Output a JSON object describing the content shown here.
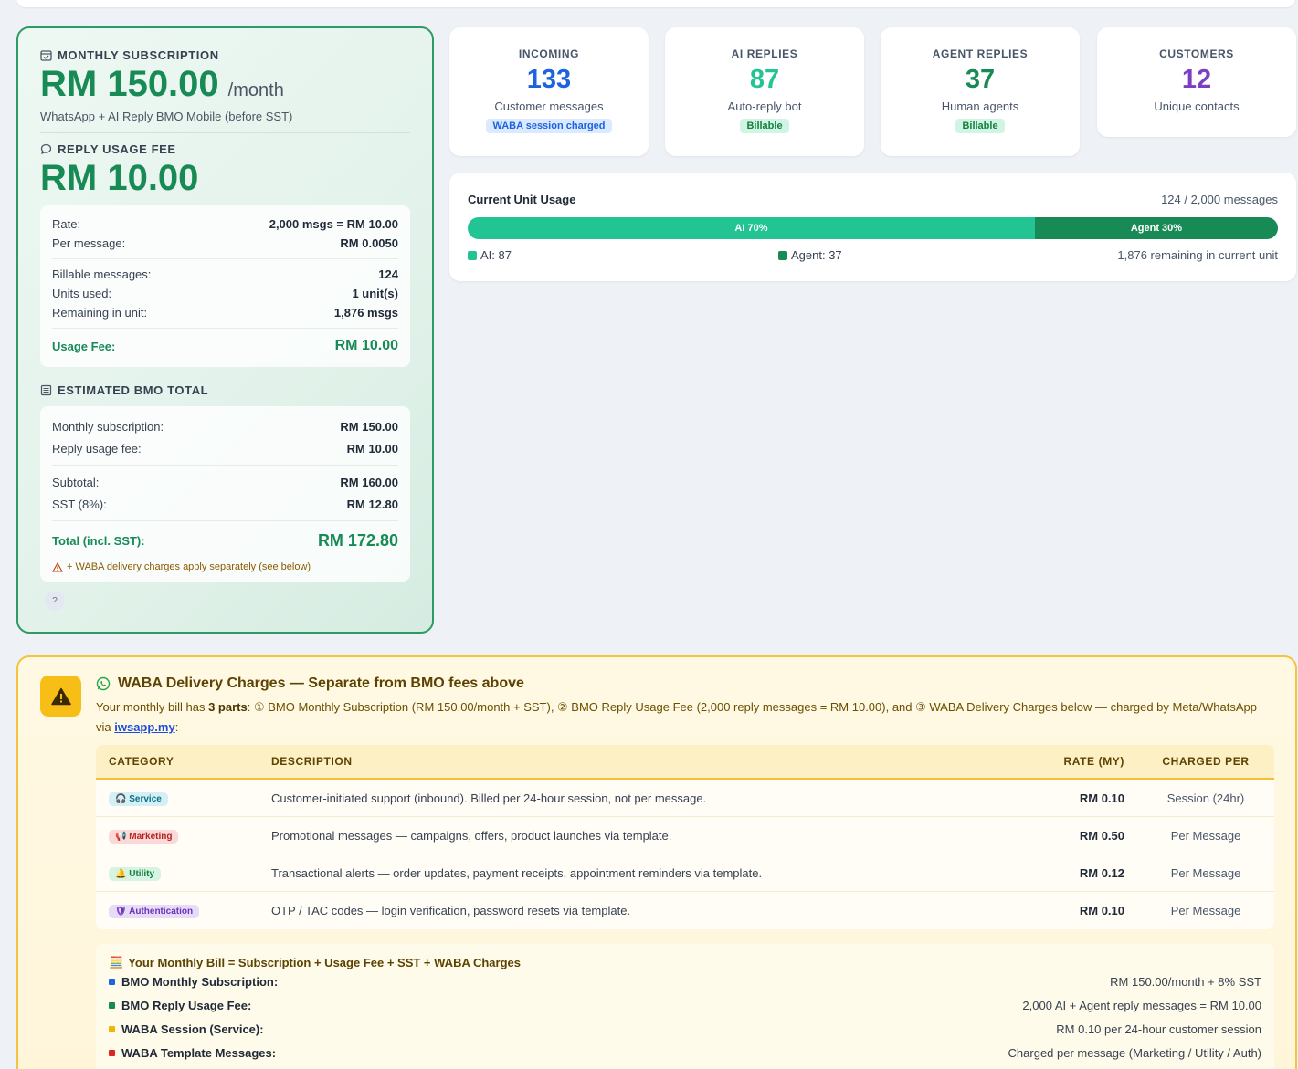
{
  "subscription": {
    "title": "MONTHLY SUBSCRIPTION",
    "amount": "RM 150.00",
    "per": "/month",
    "desc": "WhatsApp + AI Reply BMO Mobile (before SST)"
  },
  "reply_fee": {
    "title": "REPLY USAGE FEE",
    "amount": "RM 10.00",
    "rows_a": [
      {
        "k": "Rate:",
        "v": "2,000 msgs = RM 10.00"
      },
      {
        "k": "Per message:",
        "v": "RM 0.0050"
      }
    ],
    "rows_b": [
      {
        "k": "Billable messages:",
        "v": "124"
      },
      {
        "k": "Units used:",
        "v": "1 unit(s)"
      },
      {
        "k": "Remaining in unit:",
        "v": "1,876 msgs"
      }
    ],
    "total": {
      "k": "Usage Fee:",
      "v": "RM 10.00"
    }
  },
  "estimate": {
    "title": "ESTIMATED BMO TOTAL",
    "rows_a": [
      {
        "k": "Monthly subscription:",
        "v": "RM 150.00"
      },
      {
        "k": "Reply usage fee:",
        "v": "RM 10.00"
      }
    ],
    "rows_b": [
      {
        "k": "Subtotal:",
        "v": "RM 160.00"
      },
      {
        "k": "SST (8%):",
        "v": "RM 12.80"
      }
    ],
    "total": {
      "k": "Total (incl. SST):",
      "v": "RM 172.80"
    },
    "note": "+ WABA delivery charges apply separately (see below)",
    "help": "?"
  },
  "stats": [
    {
      "label": "INCOMING",
      "value": "133",
      "desc": "Customer messages",
      "tag": "WABA session charged",
      "color": "#1d63e0",
      "tag_bg": "#dbeafe",
      "tag_fg": "#1d63e0"
    },
    {
      "label": "AI REPLIES",
      "value": "87",
      "desc": "Auto-reply bot",
      "tag": "Billable",
      "color": "#22c493",
      "tag_bg": "#d1f5e4",
      "tag_fg": "#15803d"
    },
    {
      "label": "AGENT REPLIES",
      "value": "37",
      "desc": "Human agents",
      "tag": "Billable",
      "color": "#178a55",
      "tag_bg": "#d1f5e4",
      "tag_fg": "#15803d"
    },
    {
      "label": "CUSTOMERS",
      "value": "12",
      "desc": "Unique contacts",
      "tag": "",
      "color": "#7b3fc4"
    }
  ],
  "usage": {
    "title": "Current Unit Usage",
    "count": "124 / 2,000 messages",
    "ai_label": "AI 70%",
    "agent_label": "Agent 30%",
    "ai_fraction": 0.7,
    "ai_color": "#22c493",
    "agent_color": "#178a55",
    "legend_ai": "AI: 87",
    "legend_agent": "Agent: 37",
    "remaining": "1,876 remaining in current unit"
  },
  "waba": {
    "title": "WABA Delivery Charges — Separate from BMO fees above",
    "intro_pre": "Your monthly bill has ",
    "intro_bold": "3 parts",
    "intro_mid": ": ① BMO Monthly Subscription (RM 150.00/month + SST), ② BMO Reply Usage Fee (2,000 reply messages = RM 10.00), and ③ WABA Delivery Charges below — charged by Meta/WhatsApp via ",
    "intro_link": "iwsapp.my",
    "intro_end": ":",
    "columns": [
      "CATEGORY",
      "DESCRIPTION",
      "RATE (MY)",
      "CHARGED PER"
    ],
    "rows": [
      {
        "cat": "Service",
        "icon": "headset-icon",
        "bg": "#d3f0f6",
        "fg": "#0e6f86",
        "desc": "Customer-initiated support (inbound). Billed per 24-hour session, not per message.",
        "rate": "RM 0.10",
        "per": "Session (24hr)"
      },
      {
        "cat": "Marketing",
        "icon": "megaphone-icon",
        "bg": "#fbd9d9",
        "fg": "#b42323",
        "desc": "Promotional messages — campaigns, offers, product launches via template.",
        "rate": "RM 0.50",
        "per": "Per Message"
      },
      {
        "cat": "Utility",
        "icon": "bell-icon",
        "bg": "#d6f3e3",
        "fg": "#15803d",
        "desc": "Transactional alerts — order updates, payment receipts, appointment reminders via template.",
        "rate": "RM 0.12",
        "per": "Per Message"
      },
      {
        "cat": "Authentication",
        "icon": "shield-icon",
        "bg": "#e7dcf8",
        "fg": "#6b34b8",
        "desc": "OTP / TAC codes — login verification, password resets via template.",
        "rate": "RM 0.10",
        "per": "Per Message"
      }
    ],
    "bill_title": "Your Monthly Bill = Subscription + Usage Fee + SST + WABA Charges",
    "bill_rows": [
      {
        "k": "BMO Monthly Subscription:",
        "v": "RM 150.00/month + 8% SST",
        "color": "#1d63e0"
      },
      {
        "k": "BMO Reply Usage Fee:",
        "v": "2,000 AI + Agent reply messages = RM 10.00",
        "color": "#178a55"
      },
      {
        "k": "WABA Session (Service):",
        "v": "RM 0.10 per 24-hour customer session",
        "color": "#f2b705"
      },
      {
        "k": "WABA Template Messages:",
        "v": "Charged per message (Marketing / Utility / Auth)",
        "color": "#dc2626"
      }
    ]
  }
}
